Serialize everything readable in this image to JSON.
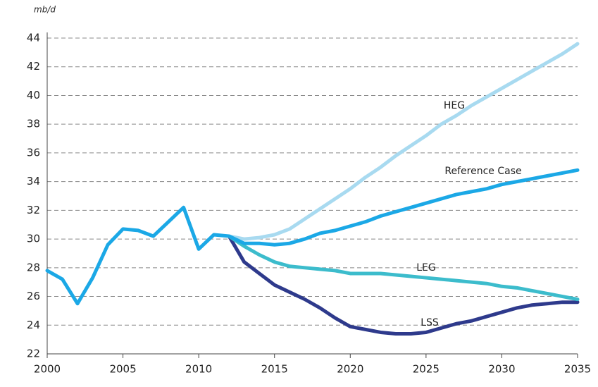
{
  "chart_data": {
    "type": "line",
    "ylabel": "mb/d",
    "x": [
      2000,
      2001,
      2002,
      2003,
      2004,
      2005,
      2006,
      2007,
      2008,
      2009,
      2010,
      2011,
      2012,
      2013,
      2014,
      2015,
      2016,
      2017,
      2018,
      2019,
      2020,
      2021,
      2022,
      2023,
      2024,
      2025,
      2026,
      2027,
      2028,
      2029,
      2030,
      2031,
      2032,
      2033,
      2034,
      2035
    ],
    "series": [
      {
        "name": "Reference Case",
        "color": "#1ba8e6",
        "values": [
          27.8,
          27.2,
          25.5,
          27.3,
          29.6,
          30.7,
          30.6,
          30.2,
          31.2,
          32.2,
          29.3,
          30.3,
          30.2,
          29.7,
          29.7,
          29.6,
          29.7,
          30.0,
          30.4,
          30.6,
          30.9,
          31.2,
          31.6,
          31.9,
          32.2,
          32.5,
          32.8,
          33.1,
          33.3,
          33.5,
          33.8,
          34.0,
          34.2,
          34.4,
          34.6,
          34.8
        ]
      },
      {
        "name": "HEG",
        "color": "#a8daf0",
        "values": [
          null,
          null,
          null,
          null,
          null,
          null,
          null,
          null,
          null,
          null,
          null,
          null,
          30.2,
          30.0,
          30.1,
          30.3,
          30.7,
          31.4,
          32.1,
          32.8,
          33.5,
          34.3,
          35.0,
          35.8,
          36.5,
          37.2,
          38.0,
          38.6,
          39.3,
          39.9,
          40.5,
          41.1,
          41.7,
          42.3,
          42.9,
          43.6
        ]
      },
      {
        "name": "LEG",
        "color": "#3cbccc",
        "values": [
          null,
          null,
          null,
          null,
          null,
          null,
          null,
          null,
          null,
          null,
          null,
          null,
          30.2,
          29.5,
          28.9,
          28.4,
          28.1,
          28.0,
          27.9,
          27.8,
          27.6,
          27.6,
          27.6,
          27.5,
          27.4,
          27.3,
          27.2,
          27.1,
          27.0,
          26.9,
          26.7,
          26.6,
          26.4,
          26.2,
          26.0,
          25.8
        ]
      },
      {
        "name": "LSS",
        "color": "#2e3a8c",
        "values": [
          null,
          null,
          null,
          null,
          null,
          null,
          null,
          null,
          null,
          null,
          null,
          null,
          30.2,
          28.4,
          27.6,
          26.8,
          26.3,
          25.8,
          25.2,
          24.5,
          23.9,
          23.7,
          23.5,
          23.4,
          23.4,
          23.5,
          23.8,
          24.1,
          24.3,
          24.6,
          24.9,
          25.2,
          25.4,
          25.5,
          25.6,
          25.6
        ]
      }
    ],
    "xlim": [
      2000,
      2035
    ],
    "xticks": [
      2000,
      2005,
      2010,
      2015,
      2020,
      2025,
      2030,
      2035
    ],
    "ylim": [
      22,
      44
    ],
    "yticks": [
      22,
      24,
      26,
      28,
      30,
      32,
      34,
      36,
      38,
      40,
      42,
      44
    ],
    "grid": true
  }
}
